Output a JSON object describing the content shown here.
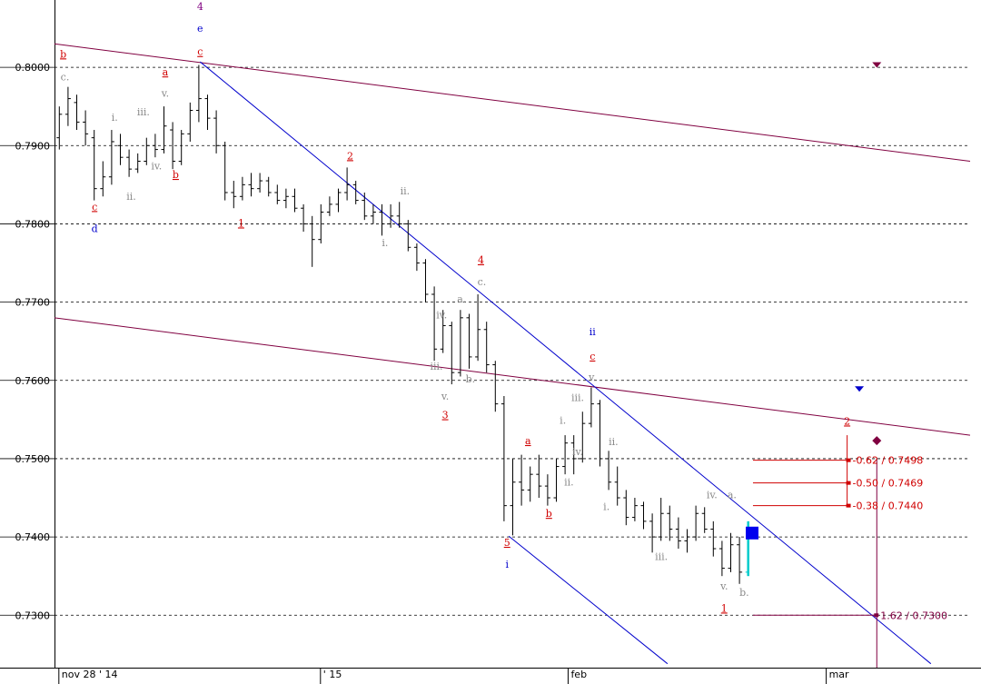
{
  "chart_data": {
    "type": "ohlc",
    "xlim": [
      -0.5,
      104.5
    ],
    "ylim": [
      0.7233,
      0.8086
    ],
    "xticks": [
      {
        "value": 0,
        "label": "nov 28 ' 14"
      },
      {
        "value": 30,
        "label": "' 15"
      },
      {
        "value": 58.4,
        "label": "feb"
      },
      {
        "value": 88,
        "label": "mar"
      }
    ],
    "yticks": [
      {
        "value": 0.73,
        "label": "0.7300"
      },
      {
        "value": 0.74,
        "label": "0.7400"
      },
      {
        "value": 0.75,
        "label": "0.7500"
      },
      {
        "value": 0.76,
        "label": "0.7600"
      },
      {
        "value": 0.77,
        "label": "0.7700"
      },
      {
        "value": 0.78,
        "label": "0.7800"
      },
      {
        "value": 0.79,
        "label": "0.7900"
      },
      {
        "value": 0.8,
        "label": "0.8000"
      }
    ],
    "grid": true,
    "color": "#000000",
    "last_color": "#00cccc",
    "x": [
      0,
      1,
      2,
      3,
      4,
      5,
      6,
      7,
      8,
      9,
      10,
      11,
      12,
      13,
      14,
      15,
      16,
      17,
      18,
      19,
      20,
      21,
      22,
      23,
      24,
      25,
      26,
      27,
      28,
      29,
      30,
      31,
      32,
      33,
      34,
      35,
      36,
      37,
      38,
      39,
      40,
      41,
      42,
      43,
      44,
      45,
      46,
      47,
      48,
      49,
      50,
      51,
      52,
      53,
      54,
      55,
      56,
      57,
      58,
      59,
      60,
      61,
      62,
      63,
      64,
      65,
      66,
      67,
      68,
      69,
      70,
      71,
      72,
      73,
      74,
      75,
      76,
      77,
      78,
      79
    ],
    "ohlc": [
      [
        0.791,
        0.795,
        0.7895,
        0.794
      ],
      [
        0.794,
        0.7975,
        0.7925,
        0.796
      ],
      [
        0.7955,
        0.7965,
        0.792,
        0.793
      ],
      [
        0.793,
        0.7945,
        0.79,
        0.7915
      ],
      [
        0.791,
        0.792,
        0.783,
        0.7845
      ],
      [
        0.7845,
        0.788,
        0.7835,
        0.786
      ],
      [
        0.786,
        0.792,
        0.785,
        0.7905
      ],
      [
        0.79,
        0.7915,
        0.7875,
        0.7885
      ],
      [
        0.7885,
        0.7895,
        0.786,
        0.787
      ],
      [
        0.787,
        0.789,
        0.7865,
        0.788
      ],
      [
        0.788,
        0.791,
        0.7875,
        0.79
      ],
      [
        0.79,
        0.7915,
        0.7885,
        0.7895
      ],
      [
        0.7895,
        0.795,
        0.789,
        0.7925
      ],
      [
        0.792,
        0.793,
        0.787,
        0.788
      ],
      [
        0.788,
        0.792,
        0.7875,
        0.7915
      ],
      [
        0.7915,
        0.7955,
        0.7905,
        0.7945
      ],
      [
        0.7945,
        0.8003,
        0.793,
        0.796
      ],
      [
        0.796,
        0.7965,
        0.792,
        0.7935
      ],
      [
        0.7935,
        0.7945,
        0.789,
        0.79
      ],
      [
        0.79,
        0.7905,
        0.783,
        0.784
      ],
      [
        0.784,
        0.7855,
        0.782,
        0.7835
      ],
      [
        0.7835,
        0.786,
        0.783,
        0.785
      ],
      [
        0.785,
        0.7865,
        0.7835,
        0.7845
      ],
      [
        0.7845,
        0.7865,
        0.784,
        0.7855
      ],
      [
        0.7855,
        0.786,
        0.7835,
        0.784
      ],
      [
        0.784,
        0.785,
        0.7825,
        0.783
      ],
      [
        0.783,
        0.7845,
        0.782,
        0.7835
      ],
      [
        0.7835,
        0.7845,
        0.7815,
        0.782
      ],
      [
        0.782,
        0.7825,
        0.779,
        0.78
      ],
      [
        0.78,
        0.781,
        0.7745,
        0.778
      ],
      [
        0.778,
        0.7825,
        0.7775,
        0.7815
      ],
      [
        0.7815,
        0.7835,
        0.781,
        0.7825
      ],
      [
        0.7825,
        0.7845,
        0.7815,
        0.784
      ],
      [
        0.784,
        0.7872,
        0.783,
        0.785
      ],
      [
        0.785,
        0.7855,
        0.7825,
        0.783
      ],
      [
        0.783,
        0.784,
        0.7805,
        0.781
      ],
      [
        0.781,
        0.7825,
        0.78,
        0.7815
      ],
      [
        0.7815,
        0.7825,
        0.7785,
        0.78
      ],
      [
        0.78,
        0.7825,
        0.7795,
        0.781
      ],
      [
        0.781,
        0.7828,
        0.7795,
        0.78
      ],
      [
        0.78,
        0.7805,
        0.7765,
        0.777
      ],
      [
        0.777,
        0.7775,
        0.774,
        0.775
      ],
      [
        0.775,
        0.7755,
        0.77,
        0.771
      ],
      [
        0.771,
        0.772,
        0.7625,
        0.764
      ],
      [
        0.764,
        0.769,
        0.7635,
        0.767
      ],
      [
        0.767,
        0.7675,
        0.7595,
        0.761
      ],
      [
        0.761,
        0.769,
        0.7605,
        0.768
      ],
      [
        0.768,
        0.7685,
        0.7615,
        0.763
      ],
      [
        0.763,
        0.771,
        0.7625,
        0.7665
      ],
      [
        0.7665,
        0.7675,
        0.761,
        0.762
      ],
      [
        0.762,
        0.7625,
        0.756,
        0.757
      ],
      [
        0.757,
        0.758,
        0.742,
        0.744
      ],
      [
        0.744,
        0.75,
        0.7402,
        0.747
      ],
      [
        0.747,
        0.7505,
        0.744,
        0.746
      ],
      [
        0.746,
        0.749,
        0.7445,
        0.748
      ],
      [
        0.748,
        0.7505,
        0.745,
        0.7465
      ],
      [
        0.7465,
        0.748,
        0.744,
        0.745
      ],
      [
        0.745,
        0.75,
        0.7445,
        0.749
      ],
      [
        0.749,
        0.753,
        0.748,
        0.752
      ],
      [
        0.752,
        0.753,
        0.748,
        0.75
      ],
      [
        0.75,
        0.756,
        0.7495,
        0.7545
      ],
      [
        0.7545,
        0.7591,
        0.754,
        0.757
      ],
      [
        0.757,
        0.7575,
        0.749,
        0.75
      ],
      [
        0.75,
        0.751,
        0.746,
        0.747
      ],
      [
        0.747,
        0.749,
        0.744,
        0.745
      ],
      [
        0.745,
        0.746,
        0.7415,
        0.7425
      ],
      [
        0.7425,
        0.745,
        0.742,
        0.744
      ],
      [
        0.744,
        0.7445,
        0.741,
        0.742
      ],
      [
        0.742,
        0.743,
        0.738,
        0.74
      ],
      [
        0.74,
        0.745,
        0.7395,
        0.743
      ],
      [
        0.743,
        0.744,
        0.7395,
        0.741
      ],
      [
        0.741,
        0.7425,
        0.7385,
        0.7395
      ],
      [
        0.7395,
        0.741,
        0.738,
        0.74
      ],
      [
        0.74,
        0.744,
        0.7395,
        0.743
      ],
      [
        0.743,
        0.7438,
        0.7405,
        0.741
      ],
      [
        0.741,
        0.742,
        0.7375,
        0.7385
      ],
      [
        0.7385,
        0.7395,
        0.735,
        0.736
      ],
      [
        0.736,
        0.7405,
        0.7355,
        0.739
      ],
      [
        0.739,
        0.74,
        0.734,
        0.7355
      ],
      [
        0.7355,
        0.742,
        0.735,
        0.7405
      ]
    ],
    "lines": [
      {
        "color": "#800040",
        "x": [
          -0.5,
          104.5
        ],
        "y": [
          0.803,
          0.788
        ]
      },
      {
        "color": "#800040",
        "x": [
          -0.5,
          104.5
        ],
        "y": [
          0.768,
          0.753
        ]
      },
      {
        "color": "#0000cc",
        "x": [
          16.2,
          100
        ],
        "y": [
          0.8007,
          0.7238
        ]
      },
      {
        "color": "#0000cc",
        "x": [
          51.6,
          69.8
        ],
        "y": [
          0.7401,
          0.7238
        ]
      },
      {
        "color": "#800040",
        "x": [
          93.8,
          93.8
        ],
        "y": [
          0.75,
          0.7233
        ]
      },
      {
        "color": "#d00000",
        "x": [
          90.4,
          90.4
        ],
        "y": [
          0.753,
          0.744
        ]
      }
    ],
    "levels": [
      {
        "label": "-0.62 / 0.7498",
        "value": 0.7498,
        "x": [
          79.6,
          90.6
        ],
        "color": "#d00000"
      },
      {
        "label": "-0.50 / 0.7469",
        "value": 0.7469,
        "x": [
          79.6,
          90.6
        ],
        "color": "#d00000"
      },
      {
        "label": "-0.38 / 0.7440",
        "value": 0.744,
        "x": [
          79.6,
          90.6
        ],
        "color": "#d00000"
      },
      {
        "label": "1.62 / 0.7300",
        "value": 0.73,
        "x": [
          79.6,
          93.8
        ],
        "color": "#800040"
      }
    ],
    "markers": [
      {
        "shape": "triangle",
        "x": 93.8,
        "y": 0.8003,
        "color": "#800040"
      },
      {
        "shape": "triangle",
        "x": 91.8,
        "y": 0.7589,
        "color": "#0000cc"
      },
      {
        "shape": "diamond",
        "x": 93.8,
        "y": 0.7523,
        "color": "#800040"
      },
      {
        "shape": "square",
        "x": 79.5,
        "y": 0.7405,
        "color": "#0000ee"
      }
    ],
    "annotations": [
      {
        "text": "4",
        "x": 16.2,
        "y": 0.8077,
        "color": "#800080"
      },
      {
        "text": "e",
        "x": 16.2,
        "y": 0.8049,
        "color": "#0000cc"
      },
      {
        "text": "c",
        "x": 16.2,
        "y": 0.8019,
        "color": "#d00000"
      },
      {
        "text": "b",
        "x": 0.5,
        "y": 0.8016,
        "color": "#d00000"
      },
      {
        "text": "c.",
        "x": 0.7,
        "y": 0.7987,
        "color": "#888888"
      },
      {
        "text": "a",
        "x": 12.2,
        "y": 0.7993,
        "color": "#d00000"
      },
      {
        "text": "v.",
        "x": 12.2,
        "y": 0.7966,
        "color": "#888888"
      },
      {
        "text": "i.",
        "x": 6.4,
        "y": 0.7935,
        "color": "#888888"
      },
      {
        "text": "iii.",
        "x": 9.7,
        "y": 0.7942,
        "color": "#888888"
      },
      {
        "text": "iv.",
        "x": 11.2,
        "y": 0.7873,
        "color": "#888888"
      },
      {
        "text": "b",
        "x": 13.4,
        "y": 0.7862,
        "color": "#d00000"
      },
      {
        "text": "ii.",
        "x": 8.3,
        "y": 0.7834,
        "color": "#888888"
      },
      {
        "text": "c",
        "x": 4.1,
        "y": 0.7821,
        "color": "#d00000"
      },
      {
        "text": "d",
        "x": 4.1,
        "y": 0.7793,
        "color": "#0000cc"
      },
      {
        "text": "1",
        "x": 20.9,
        "y": 0.78,
        "color": "#d00000"
      },
      {
        "text": "2",
        "x": 33.4,
        "y": 0.7886,
        "color": "#d00000"
      },
      {
        "text": "ii.",
        "x": 39.7,
        "y": 0.7841,
        "color": "#888888"
      },
      {
        "text": "i.",
        "x": 37.4,
        "y": 0.7775,
        "color": "#888888"
      },
      {
        "text": "4",
        "x": 48.4,
        "y": 0.7753,
        "color": "#d00000"
      },
      {
        "text": "c.",
        "x": 48.5,
        "y": 0.7725,
        "color": "#888888"
      },
      {
        "text": "a.",
        "x": 46.2,
        "y": 0.7703,
        "color": "#888888"
      },
      {
        "text": "iv.",
        "x": 43.9,
        "y": 0.7683,
        "color": "#888888"
      },
      {
        "text": "iii.",
        "x": 43.3,
        "y": 0.7617,
        "color": "#888888"
      },
      {
        "text": "b.",
        "x": 47.2,
        "y": 0.7601,
        "color": "#888888"
      },
      {
        "text": "v.",
        "x": 44.3,
        "y": 0.7579,
        "color": "#888888"
      },
      {
        "text": "3",
        "x": 44.3,
        "y": 0.7555,
        "color": "#d00000"
      },
      {
        "text": "5",
        "x": 51.4,
        "y": 0.7392,
        "color": "#d00000"
      },
      {
        "text": "i",
        "x": 51.4,
        "y": 0.7364,
        "color": "#0000cc"
      },
      {
        "text": "a",
        "x": 53.8,
        "y": 0.7522,
        "color": "#d00000"
      },
      {
        "text": "b",
        "x": 56.2,
        "y": 0.7429,
        "color": "#d00000"
      },
      {
        "text": "i.",
        "x": 57.8,
        "y": 0.7548,
        "color": "#888888"
      },
      {
        "text": "iii.",
        "x": 59.5,
        "y": 0.7577,
        "color": "#888888"
      },
      {
        "text": "iv.",
        "x": 59.5,
        "y": 0.7508,
        "color": "#888888"
      },
      {
        "text": "ii.",
        "x": 58.5,
        "y": 0.7469,
        "color": "#888888"
      },
      {
        "text": "v.",
        "x": 61.2,
        "y": 0.7603,
        "color": "#888888"
      },
      {
        "text": "c",
        "x": 61.2,
        "y": 0.763,
        "color": "#d00000"
      },
      {
        "text": "ii",
        "x": 61.2,
        "y": 0.7661,
        "color": "#0000cc"
      },
      {
        "text": "ii.",
        "x": 63.6,
        "y": 0.7521,
        "color": "#888888"
      },
      {
        "text": "i.",
        "x": 62.8,
        "y": 0.7438,
        "color": "#888888"
      },
      {
        "text": "iii.",
        "x": 69.1,
        "y": 0.7374,
        "color": "#888888"
      },
      {
        "text": "iv.",
        "x": 74.9,
        "y": 0.7453,
        "color": "#888888"
      },
      {
        "text": "a.",
        "x": 77.2,
        "y": 0.7453,
        "color": "#888888"
      },
      {
        "text": "v.",
        "x": 76.3,
        "y": 0.7336,
        "color": "#888888"
      },
      {
        "text": "b.",
        "x": 78.6,
        "y": 0.7328,
        "color": "#888888"
      },
      {
        "text": "1",
        "x": 76.3,
        "y": 0.7308,
        "color": "#d00000"
      },
      {
        "text": "2",
        "x": 90.4,
        "y": 0.7547,
        "color": "#d00000"
      }
    ]
  }
}
